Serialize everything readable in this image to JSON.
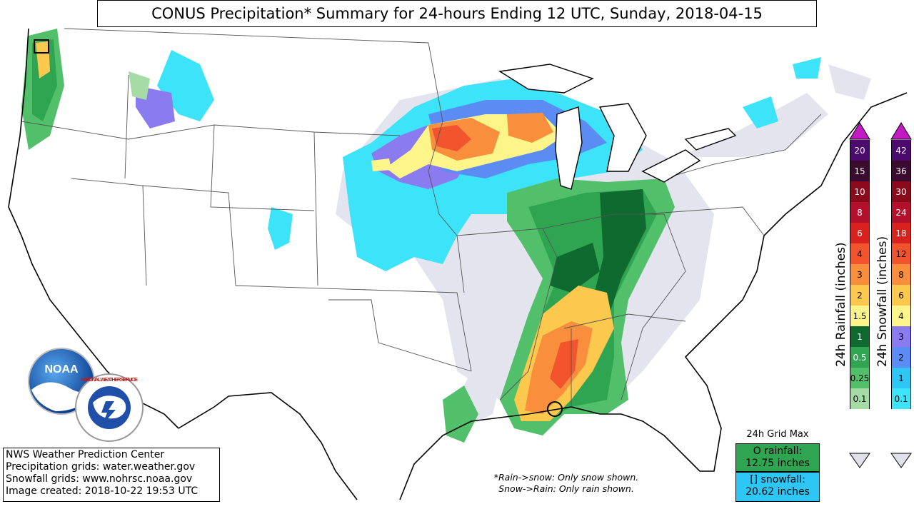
{
  "title": "CONUS Precipitation* Summary for 24-hours Ending 12 UTC, Sunday, 2018-04-15",
  "info": [
    "NWS Weather Prediction Center",
    "Precipitation grids: water.weather.gov",
    "Snowfall grids: www.nohrsc.noaa.gov",
    "Image created: 2018-10-22 19:53 UTC"
  ],
  "note": {
    "line1": "*Rain->snow: Only snow shown.",
    "line2": "Snow->Rain: Only rain shown."
  },
  "grid_max": {
    "title": "24h Grid Max",
    "rain_label": "O rainfall:",
    "rain_value": "12.75 inches",
    "snow_label": "[] snowfall:",
    "snow_value": "20.62 inches"
  },
  "rain_scale": {
    "label": "24h Rainfall (inches)",
    "levels": [
      "20",
      "15",
      "10",
      "8",
      "6",
      "4",
      "3",
      "2",
      "1.5",
      "1",
      "0.5",
      "0.25",
      "0.1"
    ],
    "colors": [
      "#4b0b6e",
      "#3b0a2f",
      "#8a0a1b",
      "#b3102b",
      "#d9221e",
      "#f2542d",
      "#f98f3d",
      "#fcc94e",
      "#fdf48a",
      "#0e6a2e",
      "#2fa451",
      "#52bf6b",
      "#a5dba5"
    ]
  },
  "snow_scale": {
    "label": "24h Snowfall (inches)",
    "levels": [
      "42",
      "36",
      "30",
      "24",
      "18",
      "12",
      "8",
      "6",
      "4",
      "3",
      "2",
      "1",
      "0.1"
    ],
    "colors": [
      "#4b0b6e",
      "#3b0a2f",
      "#8a0a1b",
      "#b3102b",
      "#d9221e",
      "#f2542d",
      "#f98f3d",
      "#fcc94e",
      "#fdf48a",
      "#8b7bf0",
      "#5b8cf4",
      "#2ec7f5",
      "#3de3f8"
    ]
  },
  "logos": {
    "noaa": "NOAA",
    "nws": "NATIONAL WEATHER SERVICE"
  }
}
